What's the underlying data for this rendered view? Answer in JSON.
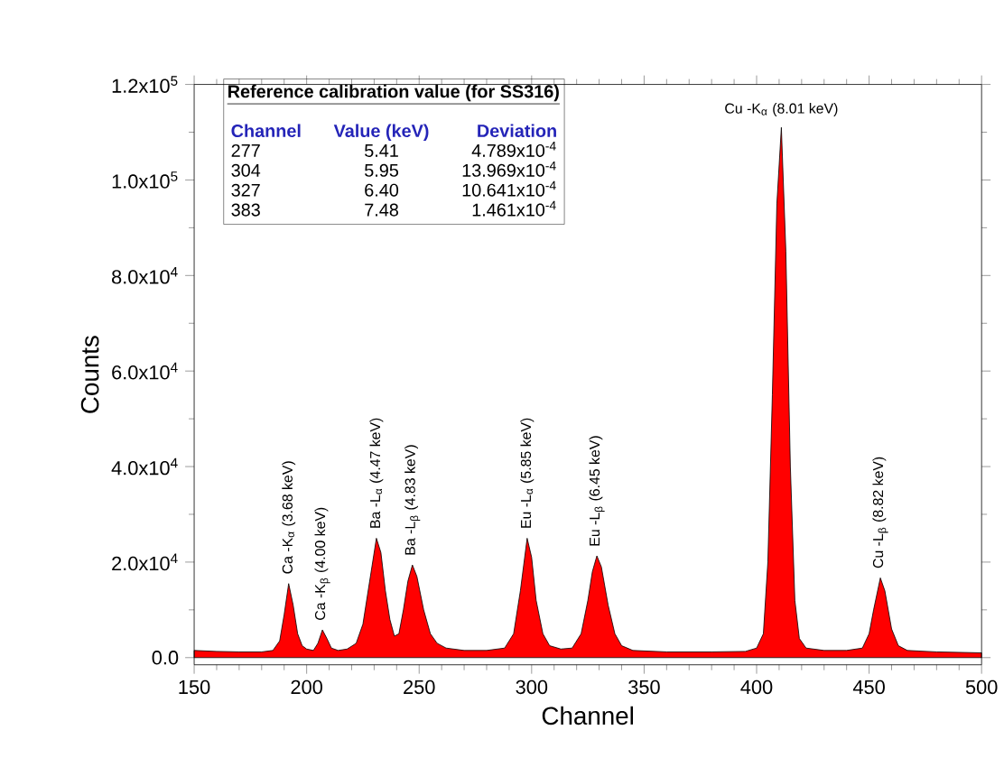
{
  "chart_data": {
    "type": "area",
    "xlabel": "Channel",
    "ylabel": "Counts",
    "xlim": [
      150,
      500
    ],
    "xticks": [
      150,
      200,
      250,
      300,
      350,
      400,
      450,
      500
    ],
    "ylim": [
      -1500,
      120000
    ],
    "yticks": [
      {
        "value": 0,
        "label": "0.0"
      },
      {
        "value": 20000,
        "label": "2.0x10$^{4}$"
      },
      {
        "value": 40000,
        "label": "4.0x10$^{4}$"
      },
      {
        "value": 60000,
        "label": "6.0x10$^{4}$"
      },
      {
        "value": 80000,
        "label": "8.0x10$^{4}$"
      },
      {
        "value": 100000,
        "label": "1.0x10$^{5}$"
      },
      {
        "value": 120000,
        "label": "1.2x10$^{5}$"
      }
    ],
    "series": [
      {
        "color": "#ff0000",
        "x": [
          150,
          160,
          170,
          180,
          185,
          188,
          190,
          192,
          194,
          196,
          198,
          200,
          203,
          205,
          207,
          209,
          211,
          214,
          218,
          222,
          225,
          228,
          231,
          233,
          235,
          237,
          239,
          241,
          243,
          245,
          247,
          249,
          252,
          255,
          258,
          262,
          270,
          280,
          288,
          292,
          295,
          298,
          300,
          302,
          305,
          308,
          313,
          318,
          322,
          325,
          327,
          329,
          331,
          334,
          337,
          340,
          345,
          360,
          380,
          395,
          400,
          403,
          405,
          407,
          409,
          411,
          413,
          415,
          417,
          419,
          422,
          430,
          440,
          447,
          450,
          452,
          455,
          457,
          460,
          463,
          467,
          480,
          500
        ],
        "values": [
          1500,
          1300,
          1200,
          1200,
          1500,
          3500,
          9000,
          15500,
          11000,
          5000,
          2500,
          1800,
          1500,
          3000,
          5800,
          4000,
          2000,
          1500,
          1800,
          3000,
          7000,
          16000,
          25000,
          22000,
          14000,
          8000,
          4500,
          5000,
          10000,
          16000,
          19400,
          17000,
          10000,
          5000,
          3000,
          2000,
          1500,
          1500,
          2000,
          5000,
          14000,
          25000,
          21000,
          12000,
          5000,
          2500,
          1800,
          2000,
          5000,
          12000,
          18000,
          21300,
          19000,
          11000,
          5000,
          2500,
          1500,
          1200,
          1200,
          1300,
          2000,
          5000,
          20000,
          55000,
          95000,
          111000,
          85000,
          40000,
          12000,
          4000,
          2000,
          1500,
          1500,
          2000,
          5000,
          10000,
          16700,
          14000,
          6000,
          2500,
          1500,
          1200,
          1000
        ]
      }
    ],
    "annotations": [
      "Reference calibration value (for SS316)",
      "Channel",
      "Value (keV)",
      "Deviation",
      "277",
      "5.41",
      "4.789x10$^{-4}$",
      "304",
      "5.95",
      "13.969x10$^{-4}$",
      "327",
      "6.40",
      "10.641x10$^{-4}$",
      "383",
      "7.48",
      "1.461x10$^{-4}$",
      {
        "text": "Ca -K$_{α}$ (3.68 keV)",
        "x": 192,
        "y": 15500
      },
      {
        "text": "Ca -K$_{β}$ (4.00 keV)",
        "x": 207,
        "y": 5800
      },
      {
        "text": "Ba -L$_{α}$ (4.47 keV)",
        "x": 231,
        "y": 25000
      },
      {
        "text": "Ba -L$_{β}$ (4.83 keV)",
        "x": 247,
        "y": 19400
      },
      {
        "text": "Eu -L$_{α}$ (5.85 keV)",
        "x": 298,
        "y": 25000
      },
      {
        "text": "Eu -L$_{β}$ (6.45 keV)",
        "x": 329,
        "y": 21300
      },
      {
        "text": "Cu -K$_{α}$ (8.01 keV)",
        "x": 411,
        "y": 111000
      },
      {
        "text": "Cu -L$_{β}$ (8.82 keV)",
        "x": 455,
        "y": 16700
      }
    ]
  }
}
